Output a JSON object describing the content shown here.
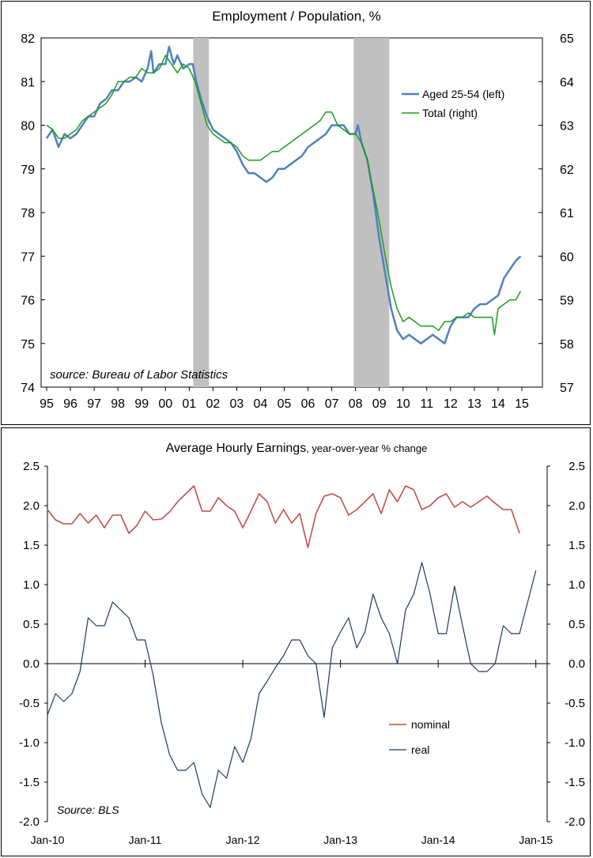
{
  "chart_data": [
    {
      "type": "line",
      "title": "Employment / Population, %",
      "source_note": "source: Bureau of Labor Statistics",
      "x_tick_labels": [
        "95",
        "96",
        "97",
        "98",
        "99",
        "00",
        "01",
        "02",
        "03",
        "04",
        "05",
        "06",
        "07",
        "08",
        "09",
        "10",
        "11",
        "12",
        "13",
        "14",
        "15"
      ],
      "x_range": [
        1995,
        2015
      ],
      "y_left": {
        "range": [
          74,
          82
        ],
        "ticks": [
          "74",
          "75",
          "76",
          "77",
          "78",
          "79",
          "80",
          "81",
          "82"
        ]
      },
      "y_right": {
        "range": [
          57,
          65
        ],
        "ticks": [
          "57",
          "58",
          "59",
          "60",
          "61",
          "62",
          "63",
          "64",
          "65"
        ]
      },
      "recession_periods": [
        [
          2001.17,
          2001.83
        ],
        [
          2007.92,
          2009.42
        ]
      ],
      "legend_position": "top-right",
      "series": [
        {
          "name": "Aged 25-54 (left)",
          "axis": "left",
          "color": "#4f81bd",
          "points": [
            [
              1995.0,
              79.7
            ],
            [
              1995.25,
              79.9
            ],
            [
              1995.5,
              79.5
            ],
            [
              1995.75,
              79.8
            ],
            [
              1996.0,
              79.7
            ],
            [
              1996.25,
              79.8
            ],
            [
              1996.5,
              80.0
            ],
            [
              1996.75,
              80.2
            ],
            [
              1997.0,
              80.2
            ],
            [
              1997.25,
              80.5
            ],
            [
              1997.5,
              80.6
            ],
            [
              1997.75,
              80.8
            ],
            [
              1998.0,
              80.8
            ],
            [
              1998.25,
              81.0
            ],
            [
              1998.5,
              81.0
            ],
            [
              1998.75,
              81.1
            ],
            [
              1999.0,
              81.0
            ],
            [
              1999.25,
              81.3
            ],
            [
              1999.4,
              81.7
            ],
            [
              1999.5,
              81.2
            ],
            [
              1999.75,
              81.4
            ],
            [
              2000.0,
              81.4
            ],
            [
              2000.15,
              81.8
            ],
            [
              2000.35,
              81.4
            ],
            [
              2000.5,
              81.6
            ],
            [
              2000.75,
              81.3
            ],
            [
              2001.0,
              81.4
            ],
            [
              2001.15,
              81.4
            ],
            [
              2001.3,
              81.0
            ],
            [
              2001.5,
              80.6
            ],
            [
              2001.75,
              80.2
            ],
            [
              2002.0,
              79.9
            ],
            [
              2002.25,
              79.8
            ],
            [
              2002.5,
              79.7
            ],
            [
              2002.75,
              79.6
            ],
            [
              2003.0,
              79.4
            ],
            [
              2003.25,
              79.1
            ],
            [
              2003.5,
              78.9
            ],
            [
              2003.75,
              78.9
            ],
            [
              2004.0,
              78.8
            ],
            [
              2004.25,
              78.7
            ],
            [
              2004.5,
              78.8
            ],
            [
              2004.75,
              79.0
            ],
            [
              2005.0,
              79.0
            ],
            [
              2005.25,
              79.1
            ],
            [
              2005.5,
              79.2
            ],
            [
              2005.75,
              79.3
            ],
            [
              2006.0,
              79.5
            ],
            [
              2006.25,
              79.6
            ],
            [
              2006.5,
              79.7
            ],
            [
              2006.75,
              79.8
            ],
            [
              2007.0,
              80.0
            ],
            [
              2007.25,
              80.0
            ],
            [
              2007.5,
              80.0
            ],
            [
              2007.75,
              79.8
            ],
            [
              2008.0,
              79.8
            ],
            [
              2008.1,
              80.0
            ],
            [
              2008.25,
              79.6
            ],
            [
              2008.5,
              79.2
            ],
            [
              2008.75,
              78.4
            ],
            [
              2009.0,
              77.4
            ],
            [
              2009.25,
              76.6
            ],
            [
              2009.5,
              75.8
            ],
            [
              2009.75,
              75.3
            ],
            [
              2010.0,
              75.1
            ],
            [
              2010.25,
              75.2
            ],
            [
              2010.5,
              75.1
            ],
            [
              2010.75,
              75.0
            ],
            [
              2011.0,
              75.1
            ],
            [
              2011.25,
              75.2
            ],
            [
              2011.5,
              75.1
            ],
            [
              2011.75,
              75.0
            ],
            [
              2012.0,
              75.4
            ],
            [
              2012.25,
              75.6
            ],
            [
              2012.5,
              75.6
            ],
            [
              2012.75,
              75.6
            ],
            [
              2013.0,
              75.8
            ],
            [
              2013.25,
              75.9
            ],
            [
              2013.5,
              75.9
            ],
            [
              2013.75,
              76.0
            ],
            [
              2014.0,
              76.1
            ],
            [
              2014.25,
              76.5
            ],
            [
              2014.5,
              76.7
            ],
            [
              2014.75,
              76.9
            ],
            [
              2014.95,
              77.0
            ]
          ]
        },
        {
          "name": "Total (right)",
          "axis": "right",
          "color": "#1a9e1a",
          "points": [
            [
              1995.0,
              63.0
            ],
            [
              1995.25,
              62.9
            ],
            [
              1995.5,
              62.7
            ],
            [
              1995.75,
              62.7
            ],
            [
              1996.0,
              62.8
            ],
            [
              1996.25,
              62.9
            ],
            [
              1996.5,
              63.1
            ],
            [
              1996.75,
              63.2
            ],
            [
              1997.0,
              63.3
            ],
            [
              1997.25,
              63.4
            ],
            [
              1997.5,
              63.5
            ],
            [
              1997.75,
              63.7
            ],
            [
              1998.0,
              64.0
            ],
            [
              1998.25,
              64.0
            ],
            [
              1998.5,
              64.1
            ],
            [
              1998.75,
              64.1
            ],
            [
              1999.0,
              64.3
            ],
            [
              1999.25,
              64.2
            ],
            [
              1999.5,
              64.2
            ],
            [
              1999.75,
              64.3
            ],
            [
              2000.0,
              64.6
            ],
            [
              2000.25,
              64.4
            ],
            [
              2000.5,
              64.2
            ],
            [
              2000.75,
              64.4
            ],
            [
              2001.0,
              64.3
            ],
            [
              2001.25,
              64.0
            ],
            [
              2001.5,
              63.5
            ],
            [
              2001.75,
              63.0
            ],
            [
              2002.0,
              62.8
            ],
            [
              2002.25,
              62.7
            ],
            [
              2002.5,
              62.6
            ],
            [
              2002.75,
              62.6
            ],
            [
              2003.0,
              62.5
            ],
            [
              2003.25,
              62.3
            ],
            [
              2003.5,
              62.2
            ],
            [
              2003.75,
              62.2
            ],
            [
              2004.0,
              62.2
            ],
            [
              2004.25,
              62.3
            ],
            [
              2004.5,
              62.4
            ],
            [
              2004.75,
              62.4
            ],
            [
              2005.0,
              62.5
            ],
            [
              2005.25,
              62.6
            ],
            [
              2005.5,
              62.7
            ],
            [
              2005.75,
              62.8
            ],
            [
              2006.0,
              62.9
            ],
            [
              2006.25,
              63.0
            ],
            [
              2006.5,
              63.1
            ],
            [
              2006.75,
              63.3
            ],
            [
              2007.0,
              63.3
            ],
            [
              2007.25,
              63.0
            ],
            [
              2007.5,
              62.9
            ],
            [
              2007.75,
              62.8
            ],
            [
              2008.0,
              62.8
            ],
            [
              2008.25,
              62.6
            ],
            [
              2008.5,
              62.2
            ],
            [
              2008.75,
              61.5
            ],
            [
              2009.0,
              60.8
            ],
            [
              2009.25,
              60.0
            ],
            [
              2009.5,
              59.3
            ],
            [
              2009.75,
              58.8
            ],
            [
              2010.0,
              58.5
            ],
            [
              2010.25,
              58.6
            ],
            [
              2010.5,
              58.5
            ],
            [
              2010.75,
              58.4
            ],
            [
              2011.0,
              58.4
            ],
            [
              2011.25,
              58.4
            ],
            [
              2011.5,
              58.3
            ],
            [
              2011.75,
              58.5
            ],
            [
              2012.0,
              58.5
            ],
            [
              2012.25,
              58.6
            ],
            [
              2012.5,
              58.6
            ],
            [
              2012.75,
              58.7
            ],
            [
              2013.0,
              58.6
            ],
            [
              2013.25,
              58.6
            ],
            [
              2013.5,
              58.6
            ],
            [
              2013.75,
              58.6
            ],
            [
              2013.85,
              58.2
            ],
            [
              2014.0,
              58.8
            ],
            [
              2014.25,
              58.9
            ],
            [
              2014.5,
              59.0
            ],
            [
              2014.75,
              59.0
            ],
            [
              2014.95,
              59.2
            ]
          ]
        }
      ]
    },
    {
      "type": "line",
      "title": "Average Hourly Earnings",
      "subtitle": ", year-over-year % change",
      "source_note": "Source: BLS",
      "x_tick_labels": [
        "Jan-10",
        "Jan-11",
        "Jan-12",
        "Jan-13",
        "Jan-14",
        "Jan-15"
      ],
      "x_range_months": [
        0,
        61
      ],
      "y_range": [
        -2.0,
        2.5
      ],
      "y_ticks": [
        "2.5",
        "2.0",
        "1.5",
        "1.0",
        "0.5",
        "0.0",
        "-0.5",
        "-1.0",
        "-1.5",
        "-2.0"
      ],
      "legend_position": "bottom-right",
      "series": [
        {
          "name": "nominal",
          "color": "#c0504d",
          "values": [
            1.95,
            1.82,
            1.77,
            1.77,
            1.9,
            1.78,
            1.88,
            1.72,
            1.88,
            1.88,
            1.65,
            1.75,
            1.93,
            1.82,
            1.83,
            1.92,
            2.05,
            2.15,
            2.25,
            1.93,
            1.93,
            2.1,
            2.0,
            1.93,
            1.72,
            1.93,
            2.15,
            2.05,
            1.78,
            1.95,
            1.78,
            1.9,
            1.47,
            1.9,
            2.12,
            2.15,
            2.1,
            1.88,
            1.95,
            2.05,
            2.15,
            1.9,
            2.2,
            2.05,
            2.25,
            2.2,
            1.95,
            2.0,
            2.1,
            2.15,
            1.98,
            2.05,
            1.98,
            2.05,
            2.12,
            2.03,
            1.95,
            1.95,
            1.65
          ]
        },
        {
          "name": "real",
          "color": "#1f3864",
          "values": [
            -0.65,
            -0.38,
            -0.48,
            -0.38,
            -0.1,
            0.58,
            0.48,
            0.48,
            0.78,
            0.68,
            0.58,
            0.3,
            0.3,
            -0.15,
            -0.75,
            -1.15,
            -1.35,
            -1.35,
            -1.25,
            -1.65,
            -1.82,
            -1.35,
            -1.45,
            -1.05,
            -1.25,
            -0.95,
            -0.38,
            -0.22,
            -0.05,
            0.1,
            0.3,
            0.3,
            0.1,
            0.0,
            -0.68,
            0.2,
            0.4,
            0.58,
            0.2,
            0.4,
            0.88,
            0.58,
            0.38,
            0.0,
            0.68,
            0.88,
            1.28,
            0.88,
            0.38,
            0.38,
            0.98,
            0.48,
            0.0,
            -0.1,
            -0.1,
            0.0,
            0.48,
            0.38,
            0.38,
            0.78,
            1.18
          ]
        }
      ]
    }
  ]
}
